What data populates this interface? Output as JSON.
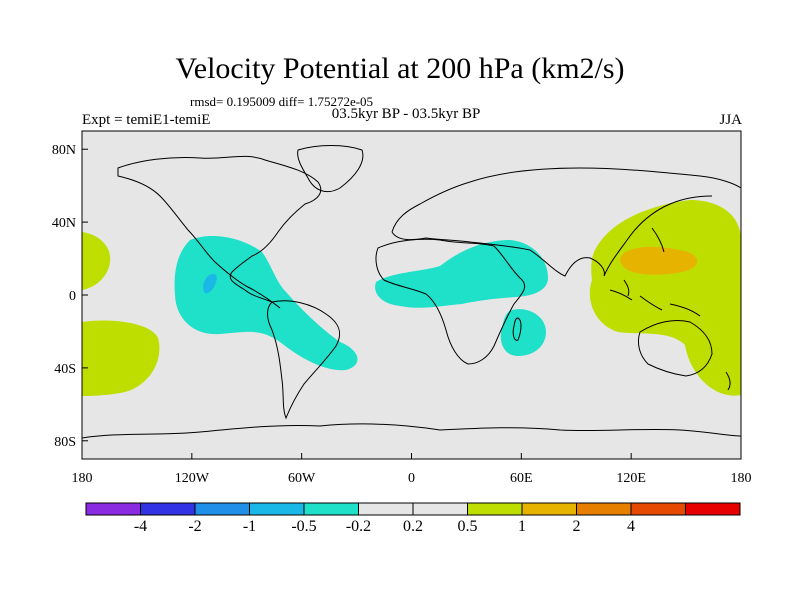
{
  "figure": {
    "title": "Velocity Potential at 200 hPa (km2/s)",
    "stats": "rmsd= 0.195009 diff= 1.75272e-05",
    "experiment": "Expt = temiE1-temiE",
    "period": "03.5kyr BP - 03.5kyr BP",
    "season": "JJA"
  },
  "map": {
    "projection": "cylindrical equidistant",
    "lon_range": [
      -180,
      180
    ],
    "lat_range": [
      -90,
      90
    ],
    "lon_ticks": [
      "180",
      "120W",
      "60W",
      "0",
      "60E",
      "120E",
      "180"
    ],
    "lat_ticks": [
      "80N",
      "40N",
      "0",
      "40S",
      "80S"
    ],
    "background": "#e6e6e6"
  },
  "colorbar": {
    "colors": [
      "#8a2be2",
      "#3333e6",
      "#1f8fe8",
      "#19b8e6",
      "#1fe0c8",
      "#e6e6e6",
      "#e6e6e6",
      "#bede00",
      "#e6b400",
      "#e67f00",
      "#e64a00",
      "#e60000"
    ],
    "labels": [
      "-4",
      "-2",
      "-1",
      "-0.5",
      "-0.2",
      "0.2",
      "0.5",
      "1",
      "2",
      "4"
    ]
  },
  "anomalies": [
    {
      "name": "americas-negative",
      "level": "-0.2 to -0.5",
      "color": "#1fe0c8"
    },
    {
      "name": "africa-negative",
      "level": "-0.2 to -0.5",
      "color": "#1fe0c8"
    },
    {
      "name": "mexico-minimum",
      "level": "-0.5 to -1",
      "color": "#19b8e6"
    },
    {
      "name": "west-pacific-positive",
      "level": "0.2 to 0.5",
      "color": "#bede00"
    },
    {
      "name": "philippine-sea-maximum",
      "level": "0.5 to 1",
      "color": "#e6b400"
    }
  ]
}
